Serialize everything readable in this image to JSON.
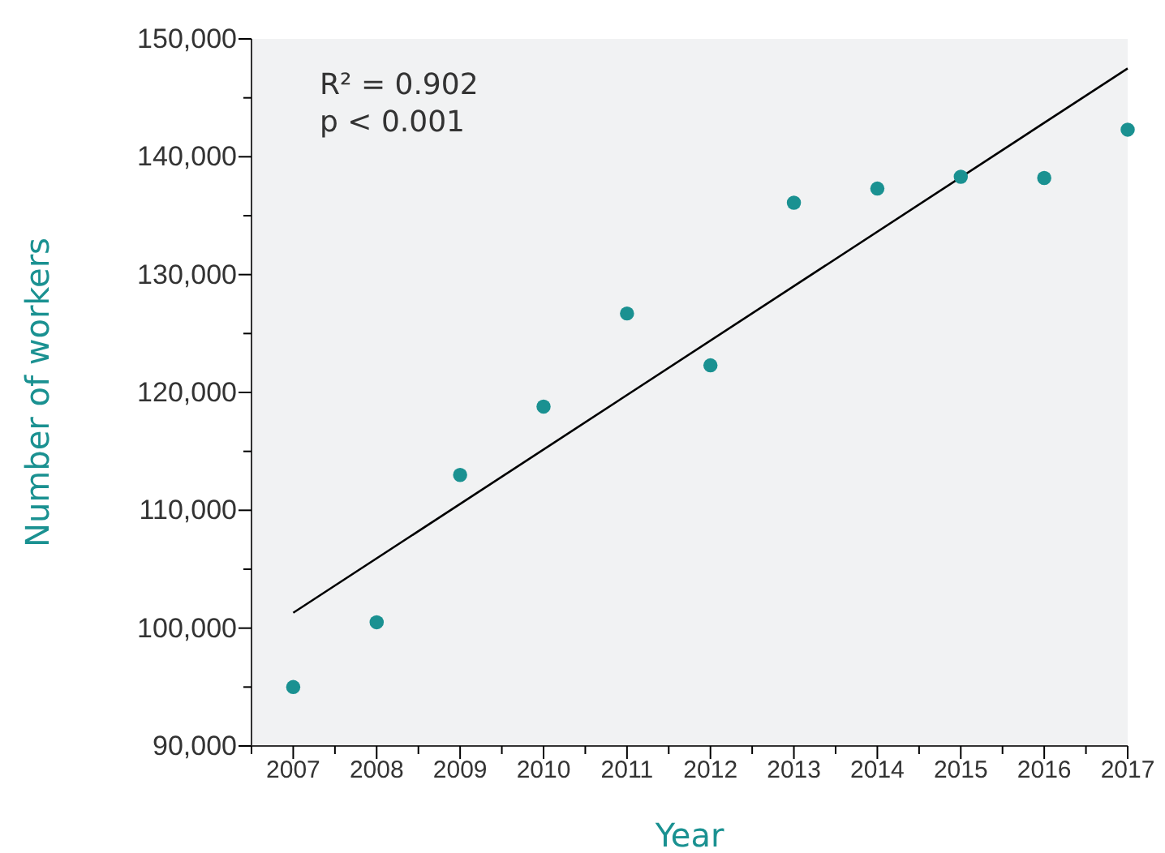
{
  "chart_data": {
    "type": "scatter",
    "xlabel": "Year",
    "ylabel": "Number of workers",
    "annotations": [
      "R² = 0.902",
      "p < 0.001"
    ],
    "x": [
      2007,
      2008,
      2009,
      2010,
      2011,
      2012,
      2013,
      2014,
      2015,
      2016,
      2017
    ],
    "series": [
      {
        "color": "#1a9191",
        "values": [
          95000,
          100500,
          113000,
          118800,
          126700,
          122300,
          136100,
          137300,
          138300,
          138200,
          142300
        ]
      },
      {
        "type": "line",
        "marker": "none",
        "color": "#000000",
        "x": [
          2007,
          2017
        ],
        "values": [
          101300,
          147500
        ]
      }
    ],
    "marker": "circle",
    "grid": false,
    "xlim": [
      2006.5,
      2017
    ],
    "xticks": [
      {
        "value": 2006.5,
        "label": null
      },
      2007,
      {
        "value": 2007.5,
        "label": null
      },
      2008,
      {
        "value": 2008.5,
        "label": null
      },
      2009,
      {
        "value": 2009.5,
        "label": null
      },
      2010,
      {
        "value": 2010.5,
        "label": null
      },
      2011,
      {
        "value": 2011.5,
        "label": null
      },
      2012,
      {
        "value": 2012.5,
        "label": null
      },
      2013,
      {
        "value": 2013.5,
        "label": null
      },
      2014,
      {
        "value": 2014.5,
        "label": null
      },
      2015,
      {
        "value": 2015.5,
        "label": null
      },
      2016,
      {
        "value": 2016.5,
        "label": null
      },
      2017
    ],
    "ylim": [
      90000,
      150000
    ],
    "yticks": [
      {
        "value": 90000,
        "label": "90,000"
      },
      {
        "value": 95000,
        "label": null
      },
      {
        "value": 100000,
        "label": "100,000"
      },
      {
        "value": 105000,
        "label": null
      },
      {
        "value": 110000,
        "label": "110,000"
      },
      {
        "value": 115000,
        "label": null
      },
      {
        "value": 120000,
        "label": "120,000"
      },
      {
        "value": 125000,
        "label": null
      },
      {
        "value": 130000,
        "label": "130,000"
      },
      {
        "value": 135000,
        "label": null
      },
      {
        "value": 140000,
        "label": "140,000"
      },
      {
        "value": 145000,
        "label": null
      },
      {
        "value": 150000,
        "label": "150,000"
      }
    ]
  }
}
